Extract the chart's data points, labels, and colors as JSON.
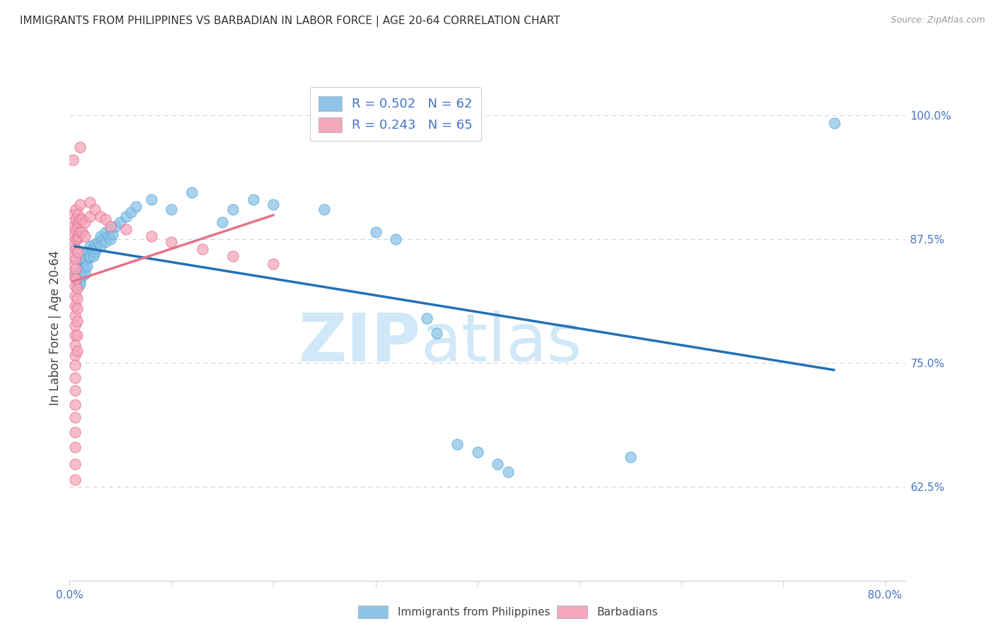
{
  "title": "IMMIGRANTS FROM PHILIPPINES VS BARBADIAN IN LABOR FORCE | AGE 20-64 CORRELATION CHART",
  "source": "Source: ZipAtlas.com",
  "ylabel": "In Labor Force | Age 20-64",
  "xlim": [
    0.0,
    0.82
  ],
  "ylim": [
    0.53,
    1.04
  ],
  "xticks": [
    0.0,
    0.1,
    0.2,
    0.3,
    0.4,
    0.5,
    0.6,
    0.7,
    0.8
  ],
  "xticklabels": [
    "0.0%",
    "",
    "",
    "",
    "",
    "",
    "",
    "",
    "80.0%"
  ],
  "yticks": [
    0.625,
    0.75,
    0.875,
    1.0
  ],
  "yticklabels": [
    "62.5%",
    "75.0%",
    "87.5%",
    "100.0%"
  ],
  "legend_blue_r": "R = 0.502",
  "legend_blue_n": "N = 62",
  "legend_pink_r": "R = 0.243",
  "legend_pink_n": "N = 65",
  "blue_color": "#8ec4e8",
  "pink_color": "#f4a7bb",
  "blue_line_color": "#2171b5",
  "pink_line_color": "#e8728a",
  "blue_scatter": [
    [
      0.005,
      0.84
    ],
    [
      0.007,
      0.835
    ],
    [
      0.008,
      0.832
    ],
    [
      0.009,
      0.828
    ],
    [
      0.01,
      0.855
    ],
    [
      0.01,
      0.848
    ],
    [
      0.01,
      0.842
    ],
    [
      0.01,
      0.838
    ],
    [
      0.01,
      0.834
    ],
    [
      0.01,
      0.83
    ],
    [
      0.012,
      0.844
    ],
    [
      0.012,
      0.838
    ],
    [
      0.013,
      0.852
    ],
    [
      0.014,
      0.846
    ],
    [
      0.015,
      0.86
    ],
    [
      0.015,
      0.852
    ],
    [
      0.015,
      0.846
    ],
    [
      0.015,
      0.84
    ],
    [
      0.016,
      0.855
    ],
    [
      0.017,
      0.848
    ],
    [
      0.018,
      0.862
    ],
    [
      0.019,
      0.856
    ],
    [
      0.02,
      0.868
    ],
    [
      0.02,
      0.858
    ],
    [
      0.022,
      0.865
    ],
    [
      0.023,
      0.858
    ],
    [
      0.025,
      0.87
    ],
    [
      0.025,
      0.862
    ],
    [
      0.026,
      0.866
    ],
    [
      0.028,
      0.872
    ],
    [
      0.03,
      0.878
    ],
    [
      0.03,
      0.868
    ],
    [
      0.032,
      0.875
    ],
    [
      0.035,
      0.882
    ],
    [
      0.035,
      0.872
    ],
    [
      0.038,
      0.878
    ],
    [
      0.04,
      0.885
    ],
    [
      0.04,
      0.875
    ],
    [
      0.042,
      0.88
    ],
    [
      0.045,
      0.888
    ],
    [
      0.05,
      0.892
    ],
    [
      0.055,
      0.898
    ],
    [
      0.06,
      0.902
    ],
    [
      0.065,
      0.908
    ],
    [
      0.08,
      0.915
    ],
    [
      0.1,
      0.905
    ],
    [
      0.12,
      0.922
    ],
    [
      0.15,
      0.892
    ],
    [
      0.16,
      0.905
    ],
    [
      0.18,
      0.915
    ],
    [
      0.2,
      0.91
    ],
    [
      0.25,
      0.905
    ],
    [
      0.3,
      0.882
    ],
    [
      0.32,
      0.875
    ],
    [
      0.35,
      0.795
    ],
    [
      0.36,
      0.78
    ],
    [
      0.38,
      0.668
    ],
    [
      0.4,
      0.66
    ],
    [
      0.42,
      0.648
    ],
    [
      0.43,
      0.64
    ],
    [
      0.55,
      0.655
    ],
    [
      0.75,
      0.992
    ]
  ],
  "pink_scatter": [
    [
      0.003,
      0.955
    ],
    [
      0.003,
      0.9
    ],
    [
      0.003,
      0.888
    ],
    [
      0.004,
      0.878
    ],
    [
      0.004,
      0.868
    ],
    [
      0.004,
      0.858
    ],
    [
      0.004,
      0.848
    ],
    [
      0.004,
      0.838
    ],
    [
      0.005,
      0.828
    ],
    [
      0.005,
      0.818
    ],
    [
      0.005,
      0.808
    ],
    [
      0.005,
      0.798
    ],
    [
      0.005,
      0.788
    ],
    [
      0.005,
      0.778
    ],
    [
      0.005,
      0.768
    ],
    [
      0.005,
      0.758
    ],
    [
      0.005,
      0.748
    ],
    [
      0.005,
      0.735
    ],
    [
      0.005,
      0.722
    ],
    [
      0.005,
      0.708
    ],
    [
      0.005,
      0.695
    ],
    [
      0.005,
      0.68
    ],
    [
      0.005,
      0.665
    ],
    [
      0.005,
      0.648
    ],
    [
      0.005,
      0.632
    ],
    [
      0.006,
      0.905
    ],
    [
      0.006,
      0.895
    ],
    [
      0.006,
      0.885
    ],
    [
      0.006,
      0.875
    ],
    [
      0.006,
      0.865
    ],
    [
      0.006,
      0.855
    ],
    [
      0.006,
      0.845
    ],
    [
      0.006,
      0.835
    ],
    [
      0.007,
      0.825
    ],
    [
      0.007,
      0.815
    ],
    [
      0.007,
      0.805
    ],
    [
      0.007,
      0.792
    ],
    [
      0.007,
      0.778
    ],
    [
      0.007,
      0.762
    ],
    [
      0.008,
      0.9
    ],
    [
      0.008,
      0.888
    ],
    [
      0.008,
      0.876
    ],
    [
      0.008,
      0.862
    ],
    [
      0.009,
      0.892
    ],
    [
      0.009,
      0.878
    ],
    [
      0.01,
      0.968
    ],
    [
      0.01,
      0.91
    ],
    [
      0.01,
      0.895
    ],
    [
      0.01,
      0.882
    ],
    [
      0.012,
      0.895
    ],
    [
      0.012,
      0.882
    ],
    [
      0.015,
      0.892
    ],
    [
      0.015,
      0.878
    ],
    [
      0.02,
      0.912
    ],
    [
      0.02,
      0.898
    ],
    [
      0.025,
      0.905
    ],
    [
      0.03,
      0.898
    ],
    [
      0.035,
      0.895
    ],
    [
      0.04,
      0.888
    ],
    [
      0.055,
      0.885
    ],
    [
      0.08,
      0.878
    ],
    [
      0.1,
      0.872
    ],
    [
      0.13,
      0.865
    ],
    [
      0.16,
      0.858
    ],
    [
      0.2,
      0.85
    ]
  ],
  "watermark_zip": "ZIP",
  "watermark_atlas": "atlas",
  "watermark_color": "#d0e8f8",
  "legend_label_blue": "Immigrants from Philippines",
  "legend_label_pink": "Barbadians",
  "axis_color": "#4472c4",
  "grid_color": "#d0d0d0",
  "tick_label_color": "#4472c4"
}
